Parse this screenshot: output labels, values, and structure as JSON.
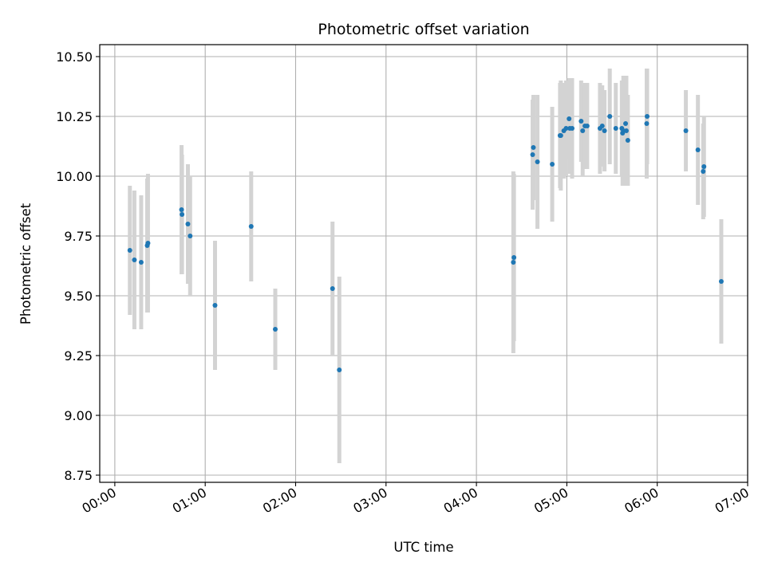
{
  "chart_data": {
    "type": "scatter",
    "title": "Photometric offset variation",
    "xlabel": "UTC time",
    "ylabel": "Photometric offset",
    "grid": true,
    "legend": "none",
    "x_unit": "minutes after 00:00 UTC",
    "xlim": [
      -10,
      420
    ],
    "ylim": [
      8.72,
      10.55
    ],
    "x_ticks": [
      {
        "value": 0,
        "label": "00:00"
      },
      {
        "value": 60,
        "label": "01:00"
      },
      {
        "value": 120,
        "label": "02:00"
      },
      {
        "value": 180,
        "label": "03:00"
      },
      {
        "value": 240,
        "label": "04:00"
      },
      {
        "value": 300,
        "label": "05:00"
      },
      {
        "value": 360,
        "label": "06:00"
      },
      {
        "value": 420,
        "label": "07:00"
      }
    ],
    "y_ticks": [
      {
        "value": 8.75,
        "label": "8.75"
      },
      {
        "value": 9.0,
        "label": "9.00"
      },
      {
        "value": 9.25,
        "label": "9.25"
      },
      {
        "value": 9.5,
        "label": "9.50"
      },
      {
        "value": 9.75,
        "label": "9.75"
      },
      {
        "value": 10.0,
        "label": "10.00"
      },
      {
        "value": 10.25,
        "label": "10.25"
      },
      {
        "value": 10.5,
        "label": "10.50"
      }
    ],
    "marker_color": "#1f77b4",
    "errorbar_color": "#d3d3d3",
    "series": [
      {
        "name": "offset",
        "x": [
          10.0,
          13.0,
          17.5,
          21.5,
          22.0,
          44.3,
          44.6,
          48.5,
          50.0,
          66.5,
          90.5,
          106.5,
          144.5,
          149.0,
          264.5,
          264.9,
          277.3,
          277.8,
          280.5,
          290.3,
          295.5,
          296.0,
          298.0,
          299.5,
          301.5,
          302.0,
          303.5,
          309.5,
          310.5,
          312.0,
          313.5,
          322.0,
          323.5,
          325.0,
          328.5,
          332.5,
          336.5,
          337.0,
          337.5,
          339.0,
          339.5,
          340.5,
          353.0,
          353.3,
          379.0,
          387.0,
          390.5,
          391.0,
          402.5
        ],
        "y": [
          9.69,
          9.65,
          9.64,
          9.71,
          9.72,
          9.86,
          9.84,
          9.8,
          9.75,
          9.46,
          9.79,
          9.36,
          9.53,
          9.19,
          9.64,
          9.66,
          10.09,
          10.12,
          10.06,
          10.05,
          10.17,
          10.17,
          10.19,
          10.2,
          10.24,
          10.2,
          10.2,
          10.23,
          10.19,
          10.21,
          10.21,
          10.2,
          10.21,
          10.19,
          10.25,
          10.2,
          10.2,
          10.18,
          10.19,
          10.22,
          10.19,
          10.15,
          10.22,
          10.25,
          10.19,
          10.11,
          10.02,
          10.04,
          9.56
        ],
        "yerr": [
          0.27,
          0.29,
          0.28,
          0.28,
          0.29,
          0.27,
          0.25,
          0.25,
          0.25,
          0.27,
          0.23,
          0.17,
          0.28,
          0.39,
          0.38,
          0.35,
          0.23,
          0.22,
          0.28,
          0.24,
          0.22,
          0.23,
          0.2,
          0.2,
          0.17,
          0.19,
          0.21,
          0.17,
          0.19,
          0.18,
          0.18,
          0.19,
          0.17,
          0.17,
          0.2,
          0.19,
          0.2,
          0.22,
          0.23,
          0.2,
          0.23,
          0.19,
          0.23,
          0.2,
          0.17,
          0.23,
          0.2,
          0.21,
          0.26
        ]
      }
    ]
  }
}
